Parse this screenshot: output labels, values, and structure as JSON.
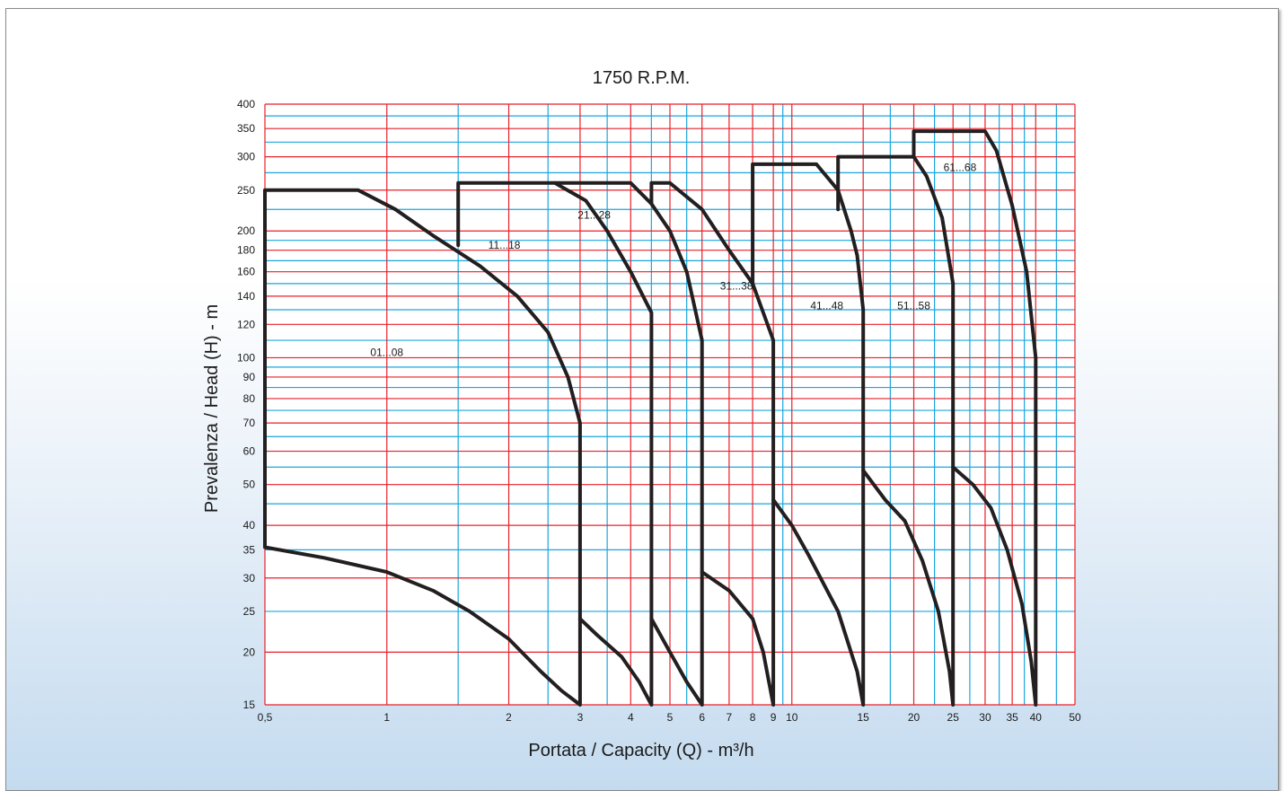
{
  "chart_data": {
    "type": "line",
    "title": "1750 R.P.M.",
    "xlabel": "Portata / Capacity (Q) - m³/h",
    "ylabel": "Prevalenza / Head (H) - m",
    "xscale": "log",
    "yscale": "log",
    "xlim": [
      0.5,
      50
    ],
    "ylim": [
      15,
      400
    ],
    "x_tick_labels": [
      {
        "value": 0.5,
        "label": "0,5"
      },
      {
        "value": 1,
        "label": "1"
      },
      {
        "value": 2,
        "label": "2"
      },
      {
        "value": 3,
        "label": "3"
      },
      {
        "value": 4,
        "label": "4"
      },
      {
        "value": 5,
        "label": "5"
      },
      {
        "value": 6,
        "label": "6"
      },
      {
        "value": 7,
        "label": "7"
      },
      {
        "value": 8,
        "label": "8"
      },
      {
        "value": 9,
        "label": "9"
      },
      {
        "value": 10,
        "label": "10"
      },
      {
        "value": 15,
        "label": "15"
      },
      {
        "value": 20,
        "label": "20"
      },
      {
        "value": 25,
        "label": "25"
      },
      {
        "value": 30,
        "label": "30"
      },
      {
        "value": 35,
        "label": "35"
      },
      {
        "value": 40,
        "label": "40"
      },
      {
        "value": 50,
        "label": "50"
      }
    ],
    "y_tick_labels": [
      {
        "value": 15,
        "label": "15"
      },
      {
        "value": 20,
        "label": "20"
      },
      {
        "value": 25,
        "label": "25"
      },
      {
        "value": 30,
        "label": "30"
      },
      {
        "value": 35,
        "label": "35"
      },
      {
        "value": 40,
        "label": "40"
      },
      {
        "value": 50,
        "label": "50"
      },
      {
        "value": 60,
        "label": "60"
      },
      {
        "value": 70,
        "label": "70"
      },
      {
        "value": 80,
        "label": "80"
      },
      {
        "value": 90,
        "label": "90"
      },
      {
        "value": 100,
        "label": "100"
      },
      {
        "value": 120,
        "label": "120"
      },
      {
        "value": 140,
        "label": "140"
      },
      {
        "value": 160,
        "label": "160"
      },
      {
        "value": 180,
        "label": "180"
      },
      {
        "value": 200,
        "label": "200"
      },
      {
        "value": 250,
        "label": "250"
      },
      {
        "value": 300,
        "label": "300"
      },
      {
        "value": 350,
        "label": "350"
      },
      {
        "value": 400,
        "label": "400"
      }
    ],
    "grid": {
      "red_vertical": [
        0.5,
        1,
        2,
        3,
        4,
        5,
        6,
        7,
        8,
        9,
        10,
        15,
        20,
        25,
        30,
        35,
        40,
        50
      ],
      "blue_vertical": [
        1.5,
        2.5,
        3.5,
        4.5,
        5.5,
        9.5,
        17.5,
        22.5,
        27.5,
        32.5,
        37.5,
        45
      ],
      "red_horizontal": [
        15,
        20,
        30,
        40,
        50,
        60,
        70,
        80,
        90,
        100,
        120,
        140,
        160,
        180,
        200,
        250,
        300,
        350,
        400
      ],
      "blue_horizontal": [
        25,
        35,
        45,
        55,
        65,
        75,
        85,
        95,
        110,
        130,
        150,
        170,
        190,
        225,
        275,
        325,
        375
      ],
      "red_color": "#e8202a",
      "blue_color": "#1aa6de"
    },
    "curve_color": "#231f20",
    "series": [
      {
        "name": "01...08",
        "points": [
          [
            0.5,
            35.5
          ],
          [
            0.7,
            33.5
          ],
          [
            1,
            31
          ],
          [
            1.3,
            28
          ],
          [
            1.6,
            25
          ],
          [
            2,
            21.5
          ],
          [
            2.4,
            18
          ],
          [
            2.7,
            16.2
          ],
          [
            3,
            15
          ],
          [
            3,
            70
          ],
          [
            2.8,
            90
          ],
          [
            2.5,
            115
          ],
          [
            2.1,
            140
          ],
          [
            1.7,
            165
          ],
          [
            1.3,
            195
          ],
          [
            1.05,
            225
          ],
          [
            0.85,
            250
          ],
          [
            0.5,
            250
          ],
          [
            0.5,
            35.5
          ]
        ]
      },
      {
        "name": "11...18",
        "points": [
          [
            1.5,
            185
          ],
          [
            1.5,
            260
          ],
          [
            2.6,
            260
          ],
          [
            3.1,
            236
          ],
          [
            3.5,
            200
          ],
          [
            4,
            160
          ],
          [
            4.5,
            128
          ],
          [
            4.5,
            15
          ],
          [
            4.2,
            17
          ],
          [
            3.8,
            19.5
          ],
          [
            3.3,
            22
          ],
          [
            3,
            24
          ]
        ]
      },
      {
        "name": "21...28",
        "points": [
          [
            2.6,
            260
          ],
          [
            4,
            260
          ],
          [
            4.5,
            232
          ],
          [
            5,
            200
          ],
          [
            5.5,
            160
          ],
          [
            6,
            110
          ],
          [
            6,
            15
          ],
          [
            5.5,
            17
          ],
          [
            5,
            20
          ],
          [
            4.5,
            24
          ]
        ]
      },
      {
        "name": "31...38",
        "points": [
          [
            4.5,
            232
          ],
          [
            4.5,
            260
          ],
          [
            5,
            260
          ],
          [
            6,
            225
          ],
          [
            7,
            180
          ],
          [
            8,
            150
          ],
          [
            9,
            110
          ],
          [
            9,
            15
          ],
          [
            8.5,
            20
          ],
          [
            8,
            24
          ],
          [
            7,
            28
          ],
          [
            6,
            31
          ]
        ]
      },
      {
        "name": "41...48",
        "points": [
          [
            8,
            150
          ],
          [
            8,
            288
          ],
          [
            11.5,
            288
          ],
          [
            13,
            250
          ],
          [
            14,
            200
          ],
          [
            14.5,
            175
          ],
          [
            15,
            130
          ],
          [
            15,
            15
          ],
          [
            14.5,
            18
          ],
          [
            13,
            25
          ],
          [
            11,
            34
          ],
          [
            10,
            40
          ],
          [
            9,
            46
          ]
        ]
      },
      {
        "name": "51...58",
        "points": [
          [
            13,
            225
          ],
          [
            13,
            300
          ],
          [
            20,
            300
          ],
          [
            21.5,
            270
          ],
          [
            23.5,
            215
          ],
          [
            25,
            150
          ],
          [
            25,
            15
          ],
          [
            24.5,
            18
          ],
          [
            23,
            25
          ],
          [
            21,
            33
          ],
          [
            19,
            41
          ],
          [
            17,
            46
          ],
          [
            15,
            54
          ]
        ]
      },
      {
        "name": "61...68",
        "points": [
          [
            20,
            300
          ],
          [
            20,
            345
          ],
          [
            30,
            345
          ],
          [
            32,
            310
          ],
          [
            35,
            230
          ],
          [
            38,
            160
          ],
          [
            40,
            100
          ],
          [
            40,
            15
          ],
          [
            39,
            19
          ],
          [
            37,
            26
          ],
          [
            34,
            35
          ],
          [
            31,
            44
          ],
          [
            28,
            50
          ],
          [
            25,
            55
          ]
        ]
      }
    ],
    "annotations": [
      {
        "text": "01...08",
        "x": 1.0,
        "y": 103
      },
      {
        "text": "11...18",
        "x": 1.95,
        "y": 185
      },
      {
        "text": "21...28",
        "x": 3.25,
        "y": 218
      },
      {
        "text": "31...38",
        "x": 7.3,
        "y": 148
      },
      {
        "text": "41...48",
        "x": 12.2,
        "y": 133
      },
      {
        "text": "51...58",
        "x": 20,
        "y": 133
      },
      {
        "text": "61...68",
        "x": 26,
        "y": 283
      }
    ]
  }
}
